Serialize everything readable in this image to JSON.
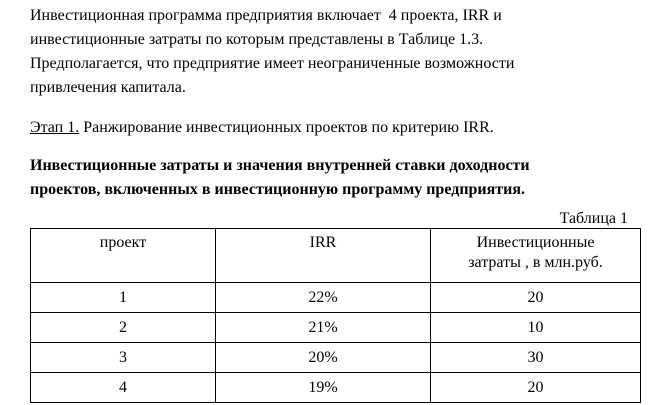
{
  "paragraph": {
    "lines": [
      "Инвестиционная программа предприятия включает  4 проекта, IRR и",
      "инвестиционные затраты по которым представлены в Таблице 1.3.",
      "Предполагается, что предприятие имеет неограниченные возможности",
      "привлечения капитала."
    ]
  },
  "stage": {
    "label": "Этап 1.",
    "text": " Ранжирование инвестиционных проектов по критерию IRR."
  },
  "heading": {
    "lines": [
      "Инвестиционные затраты и значения внутренней ставки доходности",
      "проектов, включенных в инвестиционную программу предприятия."
    ]
  },
  "table": {
    "caption": "Таблица 1",
    "header": [
      "проект",
      "IRR",
      [
        "Инвестиционные",
        "затраты , в млн.руб."
      ]
    ],
    "rows": [
      [
        "1",
        "22%",
        "20"
      ],
      [
        "2",
        "21%",
        "10"
      ],
      [
        "3",
        "20%",
        "30"
      ],
      [
        "4",
        "19%",
        "20"
      ]
    ]
  }
}
